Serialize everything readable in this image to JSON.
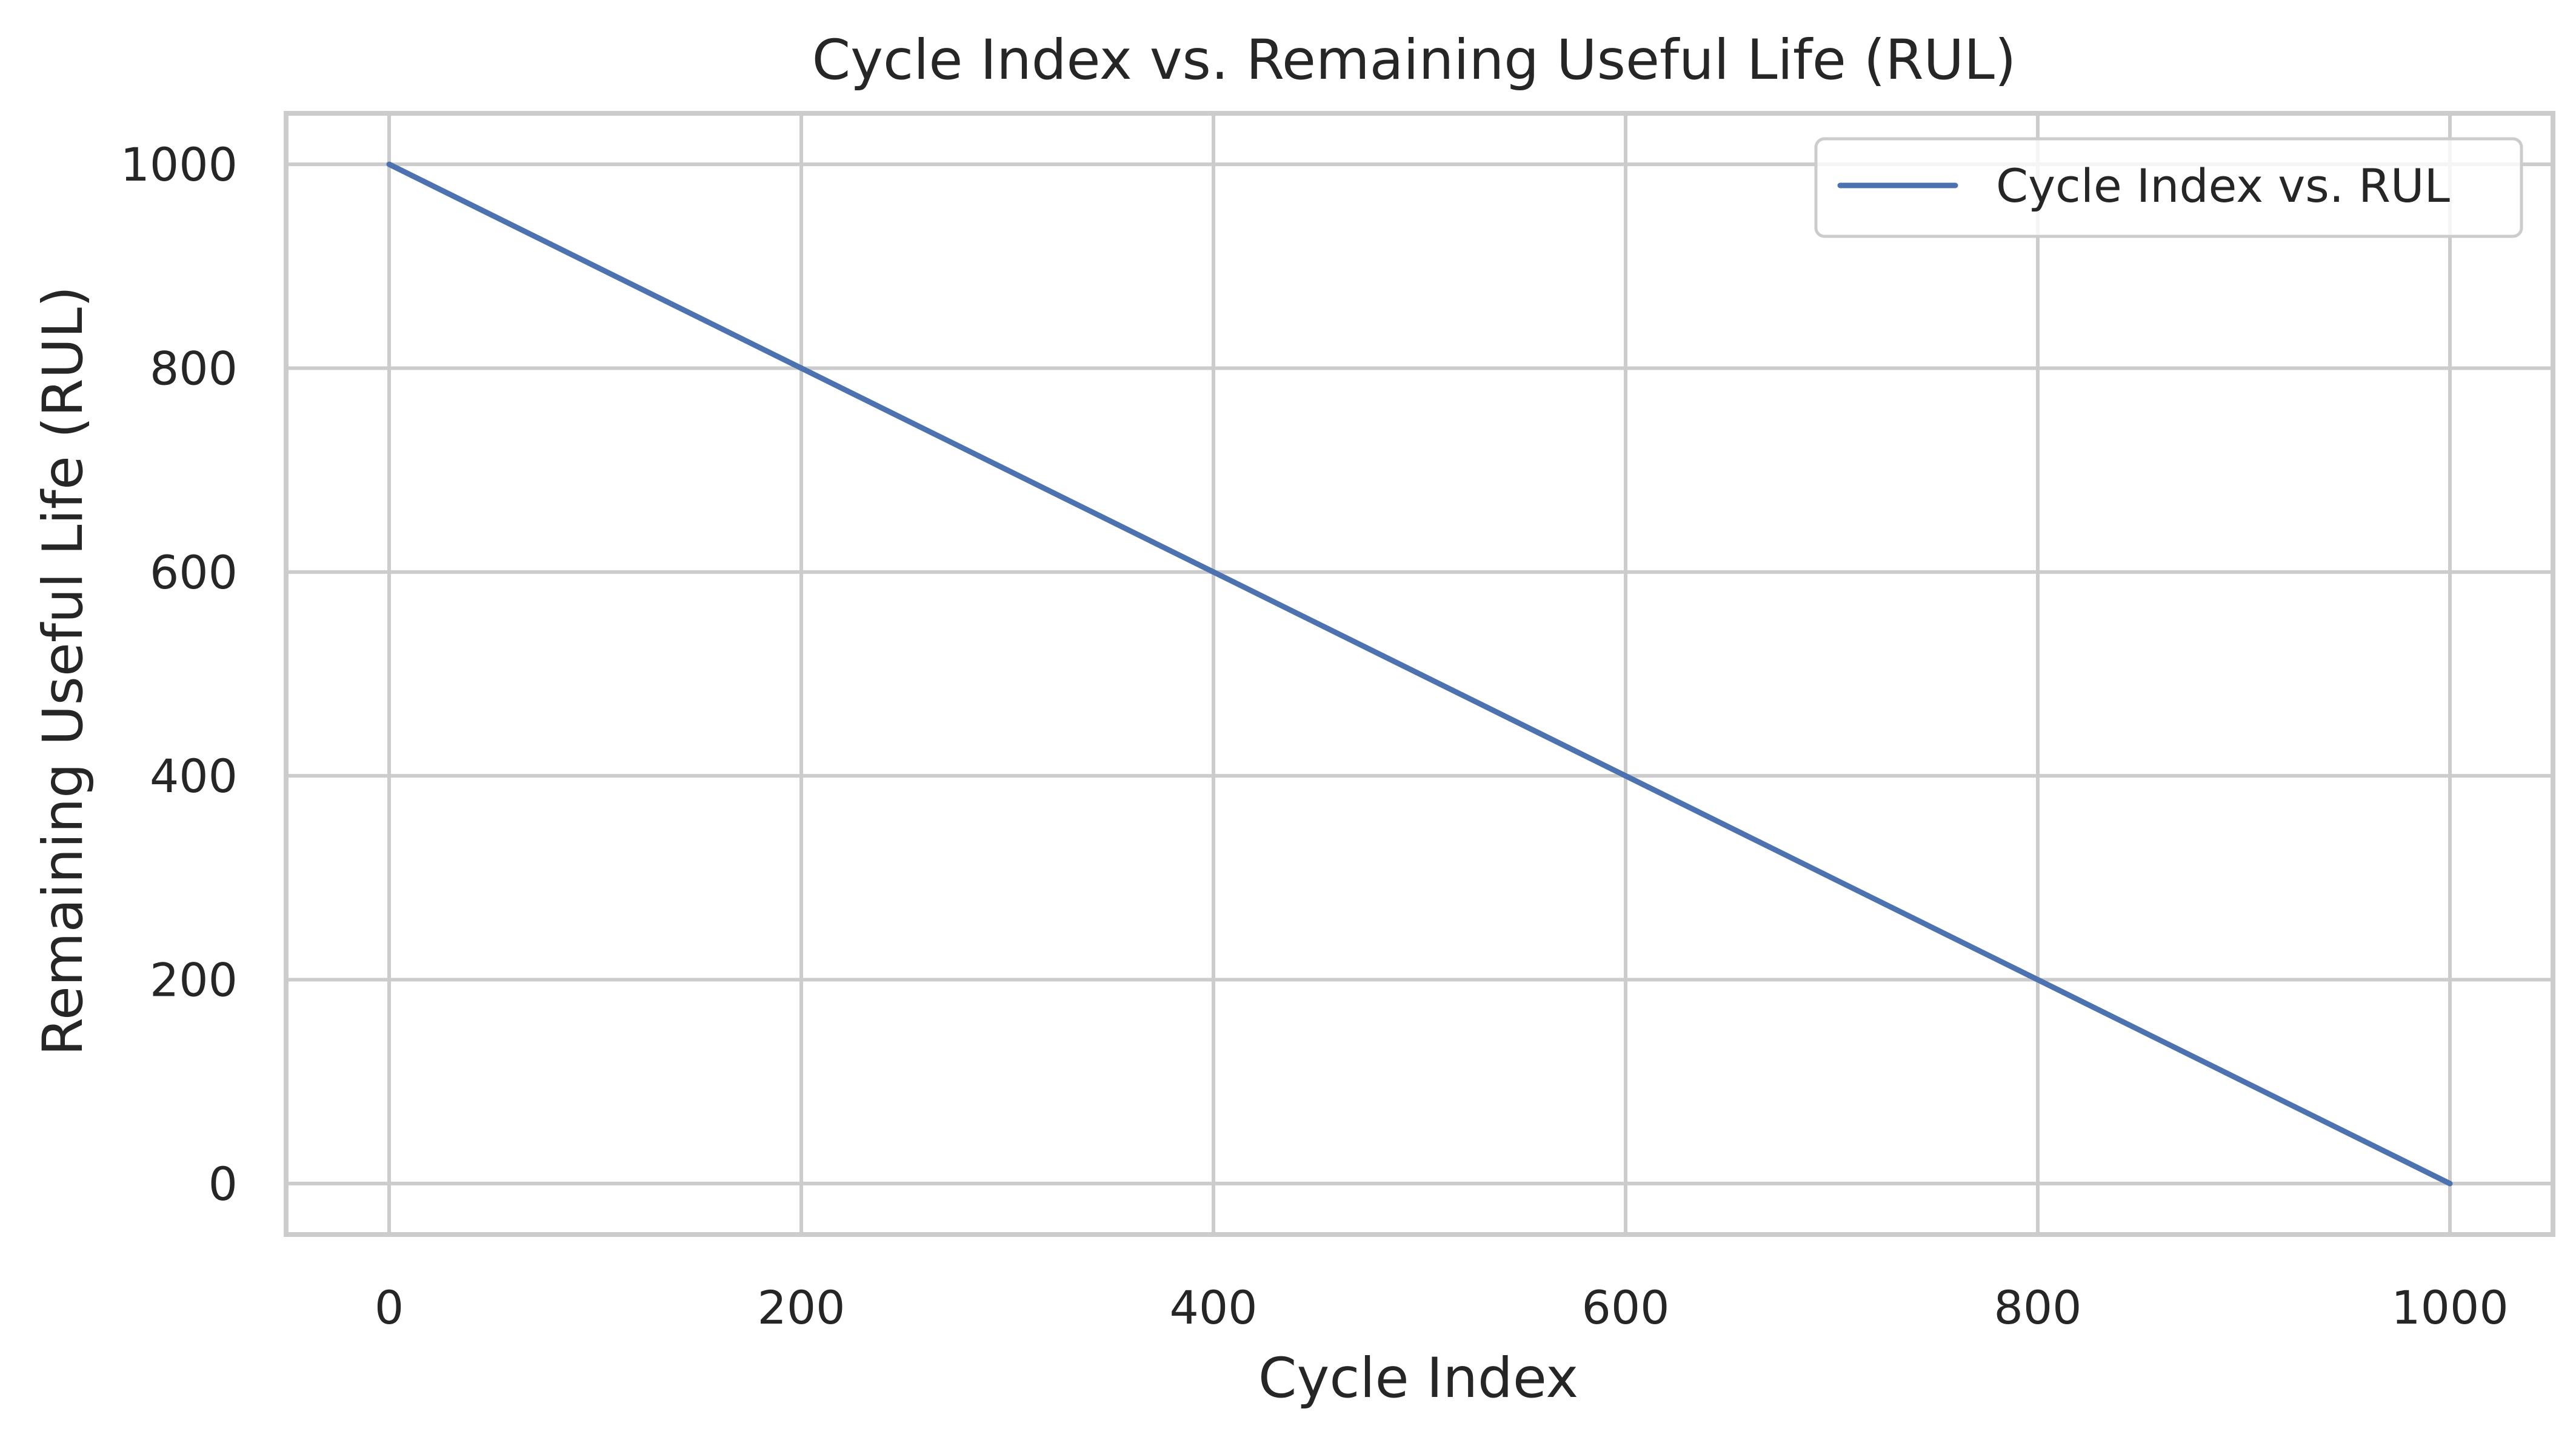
{
  "chart_data": {
    "type": "line",
    "title": "Cycle Index vs. Remaining Useful Life (RUL)",
    "xlabel": "Cycle Index",
    "ylabel": "Remaining Useful Life (RUL)",
    "xlim": [
      -50,
      1050
    ],
    "ylim": [
      -50,
      1050
    ],
    "xticks": [
      0,
      200,
      400,
      600,
      800,
      1000
    ],
    "yticks": [
      0,
      200,
      400,
      600,
      800,
      1000
    ],
    "grid": true,
    "legend_position": "top-right",
    "series": [
      {
        "name": "Cycle Index vs. RUL",
        "color": "#4c72b0",
        "x": [
          0,
          200,
          400,
          600,
          800,
          1000
        ],
        "y": [
          1000,
          800,
          600,
          400,
          200,
          0
        ]
      }
    ]
  }
}
